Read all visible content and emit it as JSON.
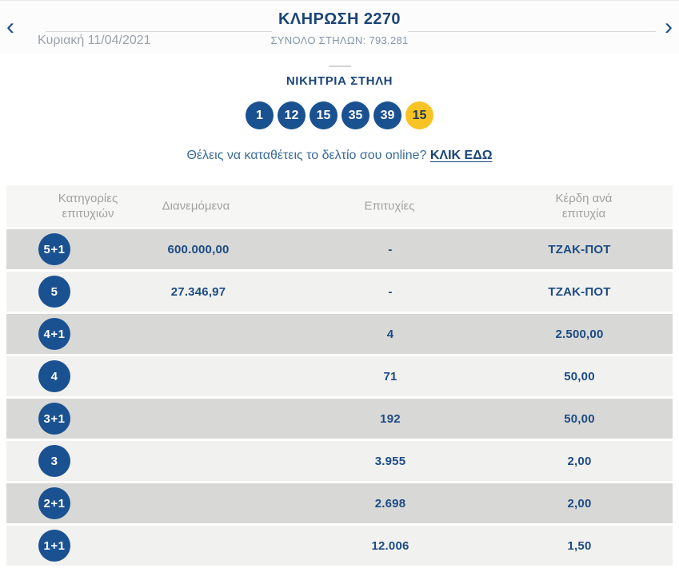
{
  "nav": {
    "prev_icon": "‹",
    "next_icon": "›",
    "title": "ΚΛΗΡΩΣΗ 2270",
    "subtitle": "ΣΥΝΟΛΟ ΣΤΗΛΩΝ: 793.281",
    "date": "Κυριακή 11/04/2021"
  },
  "winning": {
    "heading": "ΝΙΚΗΤΡΙΑ ΣΤΗΛΗ",
    "numbers": [
      "1",
      "12",
      "15",
      "35",
      "39"
    ],
    "joker": "15"
  },
  "cta": {
    "question": "Θέλεις να καταθέτεις το δελτίο σου online?",
    "link": "ΚΛΙΚ ΕΔΩ"
  },
  "table": {
    "headers": {
      "categories": "Κατηγορίες επιτυχιών",
      "distributed": "Διανεμόμενα",
      "winners": "Επιτυχίες",
      "payout": "Κέρδη ανά επιτυχία"
    },
    "rows": [
      {
        "category": "5+1",
        "distributed": "600.000,00",
        "winners": "-",
        "payout": "ΤΖΑΚ-ΠΟΤ"
      },
      {
        "category": "5",
        "distributed": "27.346,97",
        "winners": "-",
        "payout": "ΤΖΑΚ-ΠΟΤ"
      },
      {
        "category": "4+1",
        "distributed": "",
        "winners": "4",
        "payout": "2.500,00"
      },
      {
        "category": "4",
        "distributed": "",
        "winners": "71",
        "payout": "50,00"
      },
      {
        "category": "3+1",
        "distributed": "",
        "winners": "192",
        "payout": "50,00"
      },
      {
        "category": "3",
        "distributed": "",
        "winners": "3.955",
        "payout": "2,00"
      },
      {
        "category": "2+1",
        "distributed": "",
        "winners": "2.698",
        "payout": "2,00"
      },
      {
        "category": "1+1",
        "distributed": "",
        "winners": "12.006",
        "payout": "1,50"
      }
    ]
  },
  "colors": {
    "navy": "#1b4578",
    "ball_blue": "#1a5191",
    "joker_yellow": "#f8c425",
    "row_light": "#f1f1ef",
    "row_dark": "#d8d8d6"
  }
}
